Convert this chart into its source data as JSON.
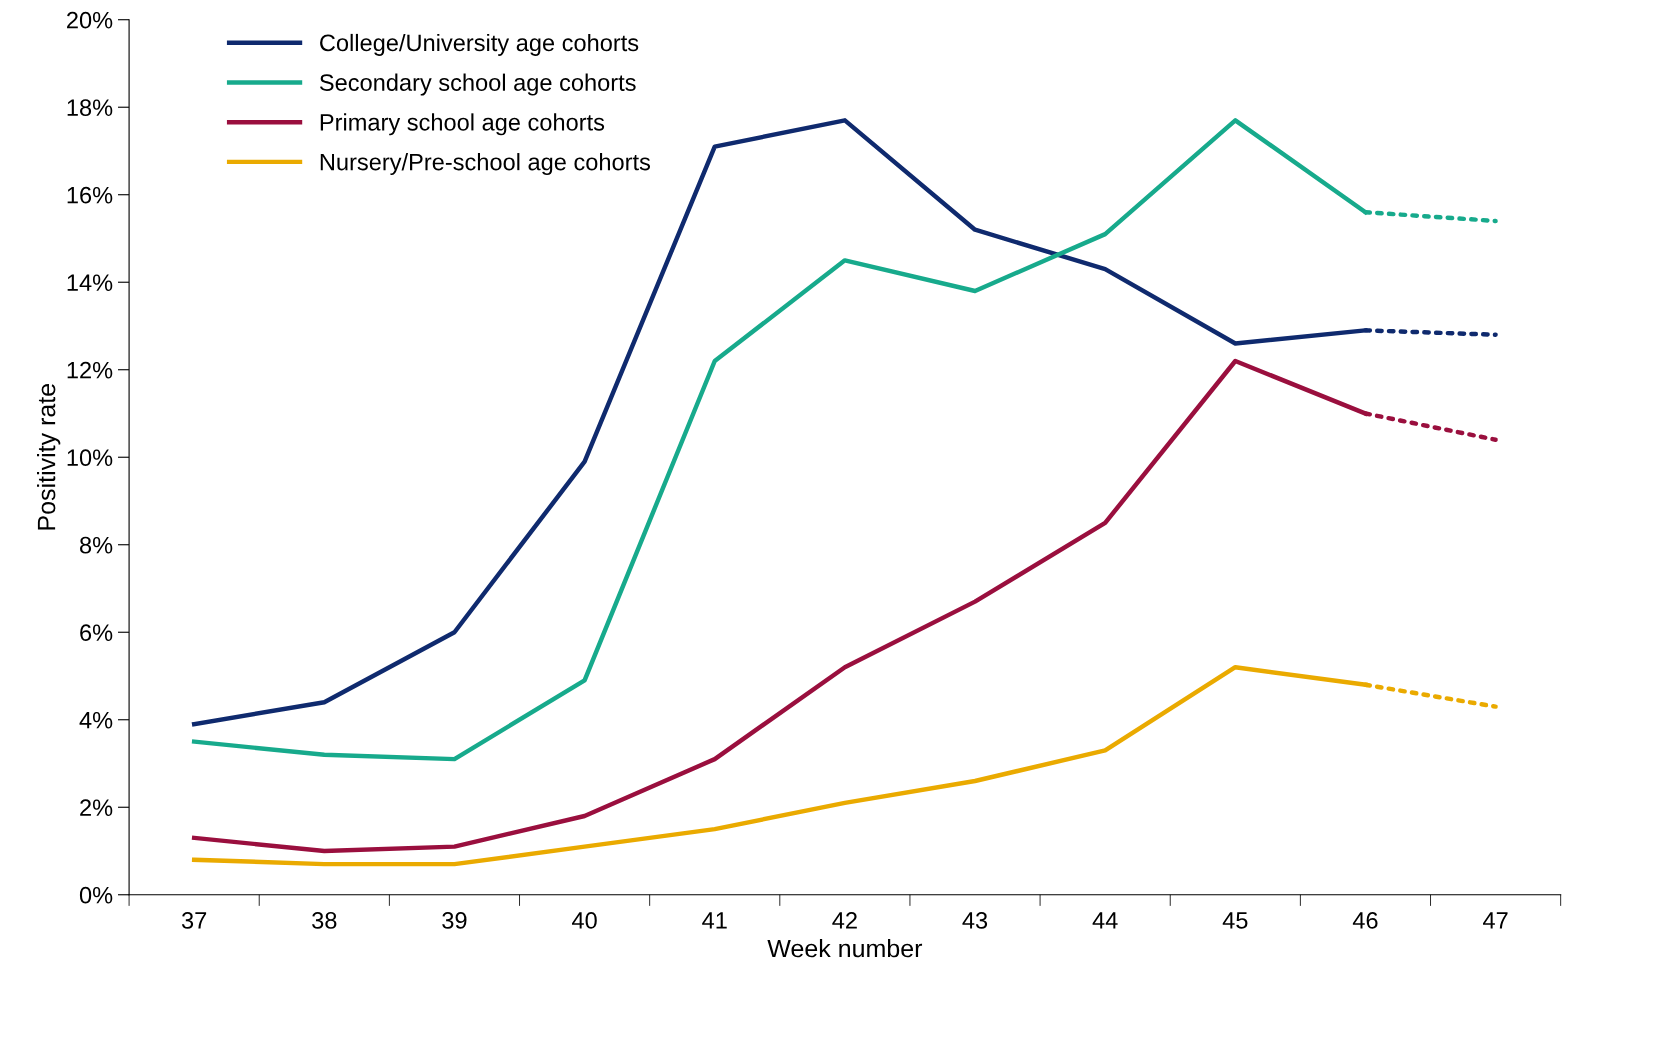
{
  "chart_data": {
    "type": "line",
    "xlabel": "Week number",
    "ylabel": "Positivity rate",
    "categories": [
      "37",
      "38",
      "39",
      "40",
      "41",
      "42",
      "43",
      "44",
      "45",
      "46",
      "47"
    ],
    "series": [
      {
        "name": "College/University age cohorts",
        "color": "#0f2a6e",
        "line_style": "solid",
        "values": [
          3.9,
          4.4,
          6.0,
          9.9,
          17.1,
          17.7,
          15.2,
          14.3,
          12.6,
          12.9,
          null
        ]
      },
      {
        "name": "Secondary school age cohorts",
        "color": "#17aa8c",
        "line_style": "solid",
        "values": [
          3.5,
          3.2,
          3.1,
          4.9,
          12.2,
          14.5,
          13.8,
          15.1,
          17.7,
          15.6,
          null
        ]
      },
      {
        "name": "Primary school age cohorts",
        "color": "#9a0f3e",
        "line_style": "solid",
        "values": [
          1.3,
          1.0,
          1.1,
          1.8,
          3.1,
          5.2,
          6.7,
          8.5,
          12.2,
          11.0,
          null
        ]
      },
      {
        "name": "Nursery/Pre-school age cohorts",
        "color": "#eaaa00",
        "line_style": "solid",
        "values": [
          0.8,
          0.7,
          0.7,
          1.1,
          1.5,
          2.1,
          2.6,
          3.3,
          5.2,
          4.8,
          null
        ]
      },
      {
        "color": "#0f2a6e",
        "line_style": "dotted",
        "values": [
          null,
          null,
          null,
          null,
          null,
          null,
          null,
          null,
          null,
          12.9,
          12.8
        ]
      },
      {
        "color": "#17aa8c",
        "line_style": "dotted",
        "values": [
          null,
          null,
          null,
          null,
          null,
          null,
          null,
          null,
          null,
          15.6,
          15.4
        ]
      },
      {
        "color": "#9a0f3e",
        "line_style": "dotted",
        "values": [
          null,
          null,
          null,
          null,
          null,
          null,
          null,
          null,
          null,
          11.0,
          10.4
        ]
      },
      {
        "color": "#eaaa00",
        "line_style": "dotted",
        "values": [
          null,
          null,
          null,
          null,
          null,
          null,
          null,
          null,
          null,
          4.8,
          4.3
        ]
      }
    ],
    "ylim": [
      0,
      20
    ],
    "yticks": [
      {
        "value": 0,
        "label": "0%"
      },
      {
        "value": 2,
        "label": "2%"
      },
      {
        "value": 4,
        "label": "4%"
      },
      {
        "value": 6,
        "label": "6%"
      },
      {
        "value": 8,
        "label": "8%"
      },
      {
        "value": 10,
        "label": "10%"
      },
      {
        "value": 12,
        "label": "12%"
      },
      {
        "value": 14,
        "label": "14%"
      },
      {
        "value": 16,
        "label": "16%"
      },
      {
        "value": 18,
        "label": "18%"
      },
      {
        "value": 20,
        "label": "20%"
      }
    ],
    "grid": false,
    "legend": "top left",
    "marker": "none"
  }
}
